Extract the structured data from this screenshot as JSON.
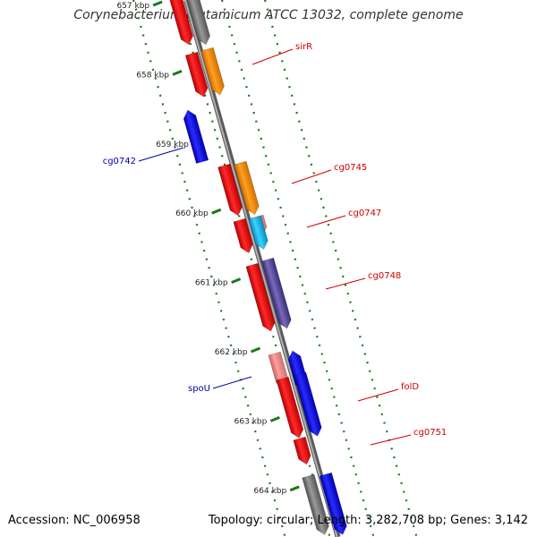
{
  "title": "Corynebacterium glutamicum ATCC 13032, complete genome",
  "footer": {
    "accession": "Accession: NC_006958",
    "summary": "Topology: circular; Length: 3,282,708 bp; Genes: 3,142"
  },
  "colors": {
    "backbone": "#808080",
    "tick": "#1a7a1a",
    "cds": "#ff0000",
    "cds_reverse": "#0000ff",
    "rna": "#ff8a00",
    "label_forward": "#cc0000",
    "label_reverse": "#0000aa",
    "trna": "#00b4e6",
    "pseudo": "#f08080",
    "misc": "#5a4a9a",
    "gray": "#707070"
  },
  "ticks": [
    "657 kbp",
    "658 kbp",
    "659 kbp",
    "660 kbp",
    "661 kbp",
    "662 kbp",
    "663 kbp",
    "664 kbp"
  ],
  "gene_labels": [
    {
      "text": "sirR",
      "side": "right"
    },
    {
      "text": "cg0742",
      "side": "left"
    },
    {
      "text": "cg0745",
      "side": "right"
    },
    {
      "text": "cg0747",
      "side": "right"
    },
    {
      "text": "cg0748",
      "side": "right"
    },
    {
      "text": "spoU",
      "side": "left"
    },
    {
      "text": "folD",
      "side": "right"
    },
    {
      "text": "cg0751",
      "side": "right"
    }
  ]
}
